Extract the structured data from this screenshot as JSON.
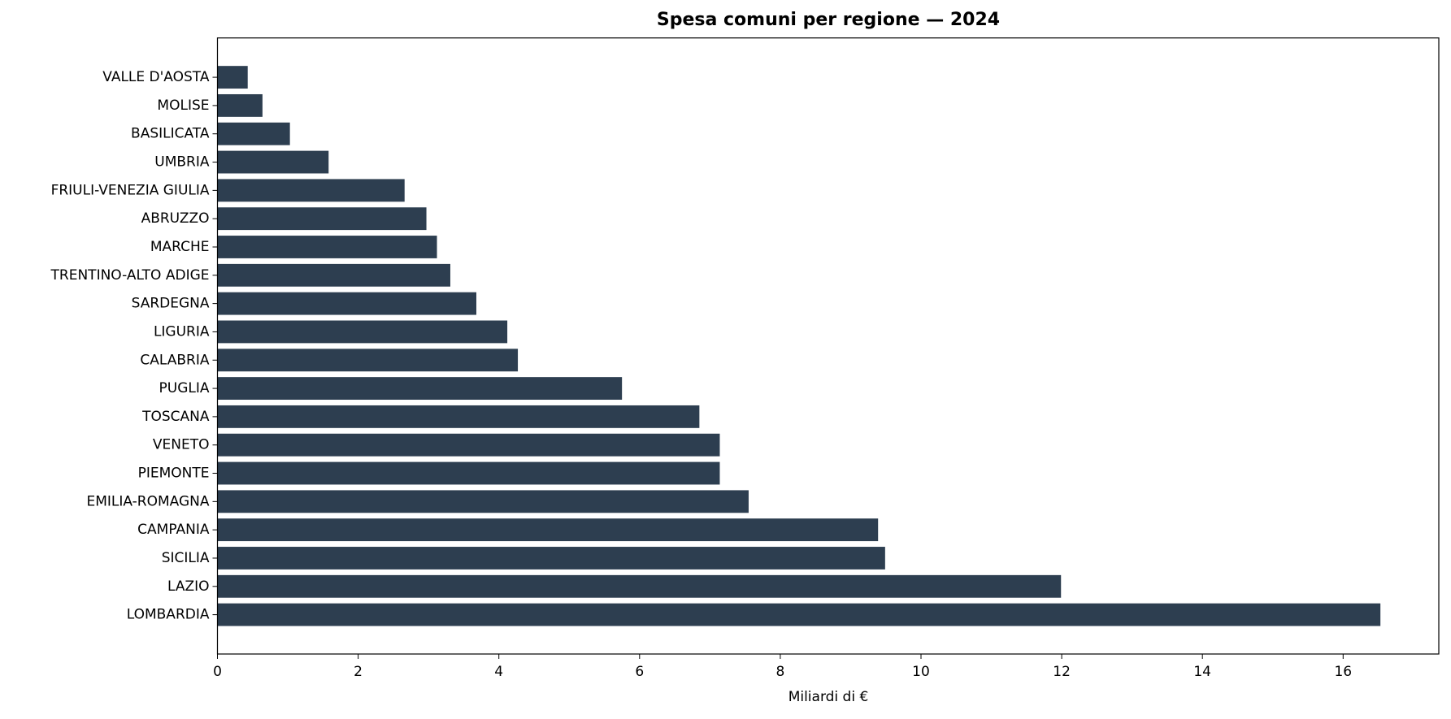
{
  "chart_data": {
    "type": "hbar",
    "title": "Spesa comuni per regione — 2024",
    "xlabel": "Miliardi di €",
    "categories": [
      "VALLE D'AOSTA",
      "MOLISE",
      "BASILICATA",
      "UMBRIA",
      "FRIULI-VENEZIA GIULIA",
      "ABRUZZO",
      "MARCHE",
      "TRENTINO-ALTO ADIGE",
      "SARDEGNA",
      "LIGURIA",
      "CALABRIA",
      "PUGLIA",
      "TOSCANA",
      "VENETO",
      "PIEMONTE",
      "EMILIA-ROMAGNA",
      "CAMPANIA",
      "SICILIA",
      "LAZIO",
      "LOMBARDIA"
    ],
    "values": [
      0.43,
      0.64,
      1.03,
      1.58,
      2.66,
      2.97,
      3.12,
      3.31,
      3.68,
      4.12,
      4.27,
      5.75,
      6.85,
      7.14,
      7.14,
      7.55,
      9.39,
      9.49,
      11.99,
      16.53
    ],
    "color": "#2d3e50",
    "xlim": [
      0,
      17.36
    ],
    "xticks": [
      0,
      2,
      4,
      6,
      8,
      10,
      12,
      14,
      16
    ]
  }
}
